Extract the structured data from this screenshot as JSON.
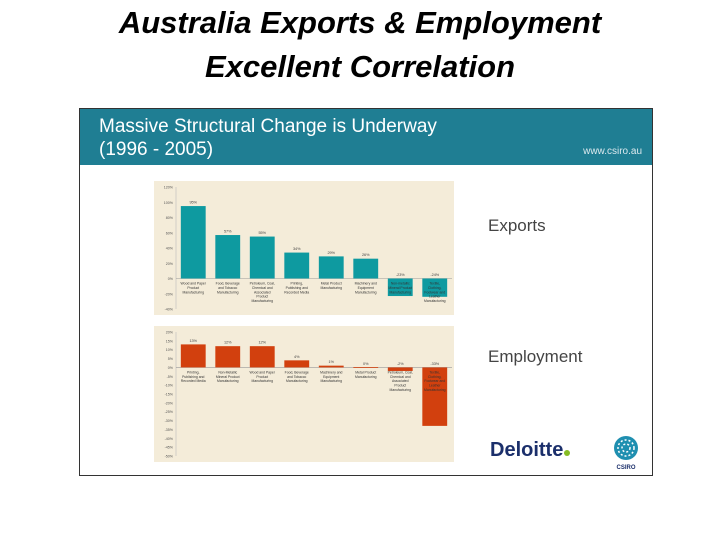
{
  "page": {
    "title_line1": "Australia Exports & Employment",
    "title_line2": "Excellent Correlation"
  },
  "slide": {
    "banner_title_line1": "Massive Structural Change is Underway",
    "banner_title_line2": "(1996 - 2005)",
    "banner_url": "www.csiro.au",
    "exports_label": "Exports",
    "employment_label": "Employment",
    "logo_deloitte": "Deloitte",
    "logo_csiro": "CSIRO",
    "colors": {
      "banner": "#1f7e93",
      "exports_bar": "#0e9aa0",
      "employment_bar": "#d2400e",
      "panel": "#f4ecd9",
      "deloitte": "#1b2f6b",
      "deloitte_dot": "#86bc25"
    }
  },
  "chart_data": [
    {
      "type": "bar",
      "id": "exports",
      "categories": [
        "Wood and Paper Product Manufacturing",
        "Food, Beverage and Tobacco Manufacturing",
        "Petroleum, Coal, Chemical and Associated Product Manufacturing",
        "Printing, Publishing and Recorded Media",
        "Metal Product Manufacturing",
        "Machinery and Equipment Manufacturing",
        "Non-metallic Mineral Product Manufacturing",
        "Textile, Clothing, Footwear and Leather Manufacturing"
      ],
      "values": [
        95,
        57,
        55,
        34,
        29,
        26,
        -23,
        -24
      ],
      "data_labels": [
        "95%",
        "57%",
        "55%",
        "34%",
        "29%",
        "26%",
        "-23%",
        "-24%"
      ],
      "yticks": [
        "120%",
        "100%",
        "80%",
        "60%",
        "40%",
        "20%",
        "0%",
        "-20%",
        "-40%"
      ],
      "ylim": [
        -40,
        120
      ],
      "color": "#0e9aa0"
    },
    {
      "type": "bar",
      "id": "employment",
      "categories": [
        "Printing, Publishing and Recorded Media",
        "Non-Metallic Mineral Product Manufacturing",
        "Wood and Paper Product Manufacturing",
        "Food, Beverage and Tobacco Manufacturing",
        "Machinery and Equipment Manufacturing",
        "Metal Product Manufacturing",
        "Petroleum, Coal, Chemical and Associated Product Manufacturing",
        "Textile, Clothing, Footwear and Leather Manufacturing"
      ],
      "values": [
        13,
        12,
        12,
        4,
        1,
        0,
        -2,
        -33
      ],
      "data_labels": [
        "13%",
        "12%",
        "12%",
        "4%",
        "1%",
        "0%",
        "-2%",
        "-33%"
      ],
      "yticks": [
        "20%",
        "15%",
        "10%",
        "5%",
        "0%",
        "-5%",
        "-10%",
        "-15%",
        "-20%",
        "-25%",
        "-30%",
        "-35%",
        "-40%",
        "-45%",
        "-50%"
      ],
      "ylim": [
        -50,
        20
      ],
      "color": "#d2400e"
    }
  ]
}
